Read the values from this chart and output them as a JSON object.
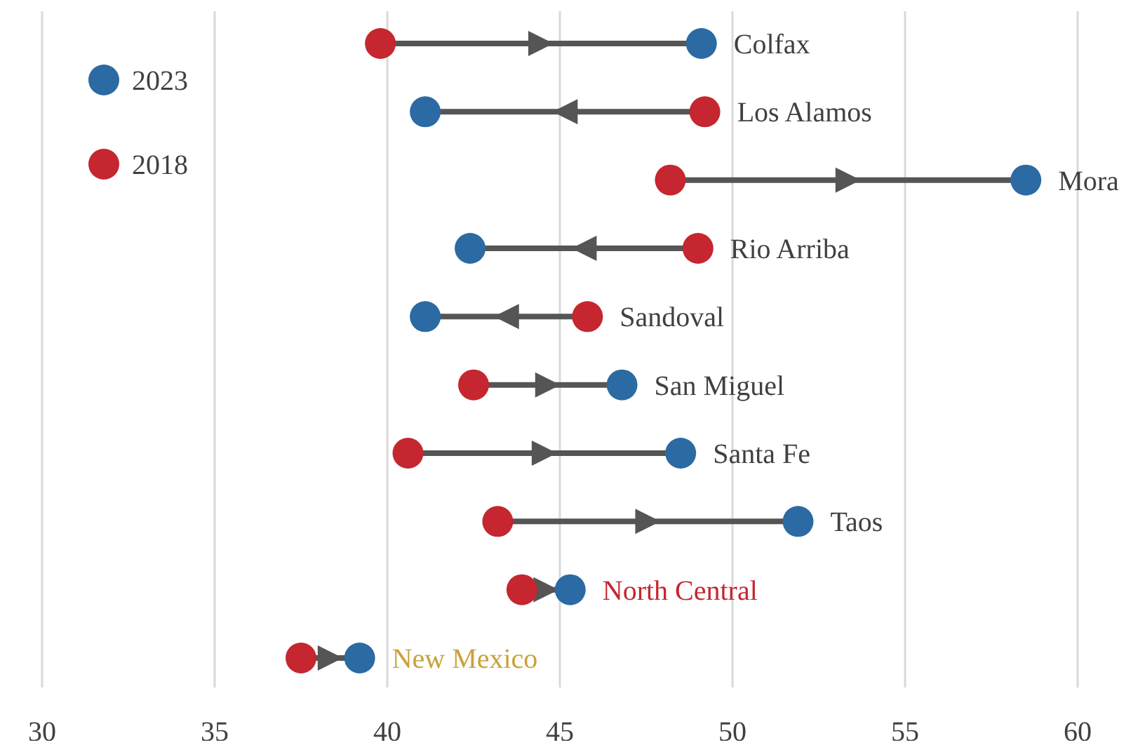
{
  "chart_data": {
    "type": "scatter",
    "orientation": "horizontal",
    "categories": [
      "Colfax",
      "Los Alamos",
      "Mora",
      "Rio Arriba",
      "Sandoval",
      "San Miguel",
      "Santa Fe",
      "Taos",
      "North Central",
      "New Mexico"
    ],
    "series": [
      {
        "name": "2023",
        "color": "#2b6aa3",
        "values": [
          49.1,
          41.1,
          58.5,
          42.4,
          41.1,
          46.8,
          48.5,
          51.9,
          45.3,
          39.2
        ]
      },
      {
        "name": "2018",
        "color": "#c5262f",
        "values": [
          39.8,
          49.2,
          48.2,
          49.0,
          45.8,
          42.5,
          40.6,
          43.2,
          43.9,
          37.5
        ]
      }
    ],
    "xlim": [
      30,
      60
    ],
    "xticks": [
      30,
      35,
      40,
      45,
      50,
      55,
      60
    ],
    "grid": "x",
    "legend": "top left",
    "marker": "circle"
  }
}
